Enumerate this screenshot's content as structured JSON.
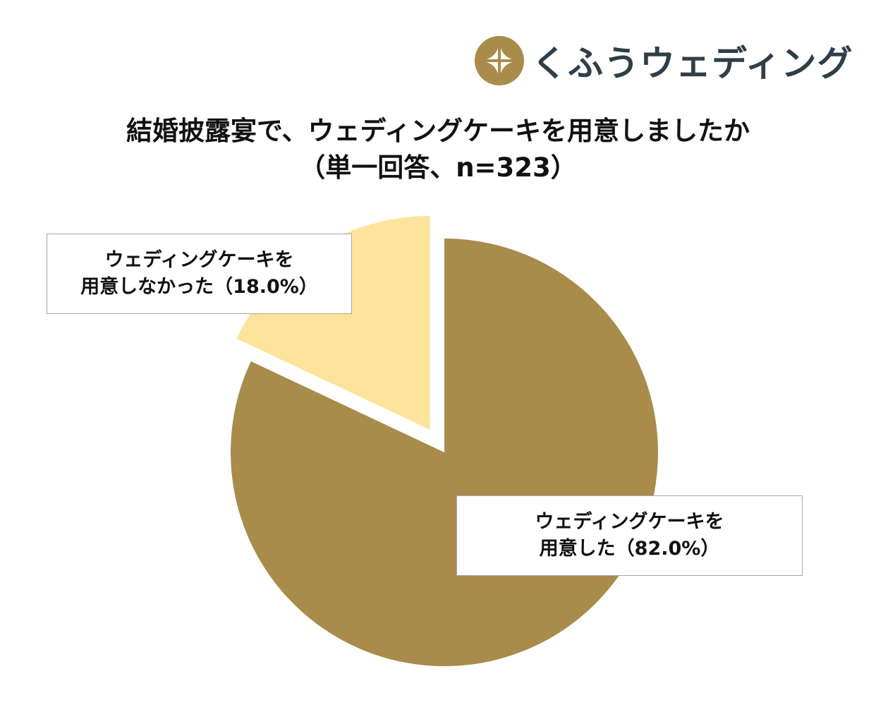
{
  "logo": {
    "text": "くふうウェディング",
    "icon": "compass-star-icon",
    "color": "#2f3f49",
    "mark_color": "#a98b4b"
  },
  "title": {
    "line1": "結婚披露宴で、ウェディングケーキを用意しましたか",
    "line2": "（単一回答、n=323）"
  },
  "chart_data": {
    "type": "pie",
    "title": "結婚披露宴で、ウェディングケーキを用意しましたか（単一回答、n=323）",
    "n": 323,
    "slices": [
      {
        "label": "ウェディングケーキを用意した",
        "value": 82.0,
        "display_line1": "ウェディングケーキを",
        "display_line2": "用意した（82.0%）",
        "color": "#a98b4b"
      },
      {
        "label": "ウェディングケーキを用意しなかった",
        "value": 18.0,
        "display_line1": "ウェディングケーキを",
        "display_line2": "用意しなかった（18.0%）",
        "color": "#fde49a",
        "exploded": true
      }
    ],
    "legend": "none"
  }
}
